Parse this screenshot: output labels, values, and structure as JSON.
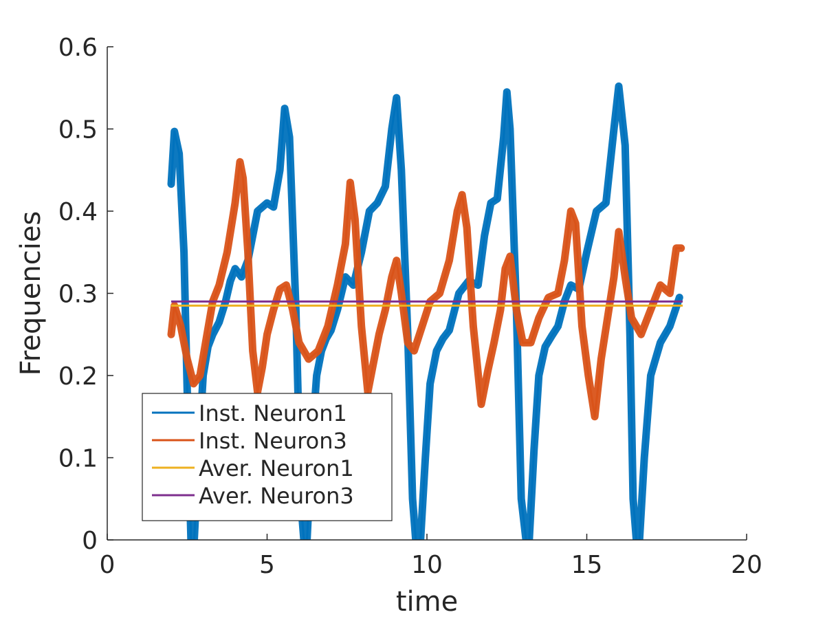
{
  "chart_data": {
    "type": "line",
    "title": "",
    "xlabel": "time",
    "ylabel": "Frequencies",
    "xlim": [
      0,
      20
    ],
    "ylim": [
      0,
      0.6
    ],
    "xticks": [
      0,
      5,
      10,
      15,
      20
    ],
    "yticks": [
      0,
      0.1,
      0.2,
      0.3,
      0.4,
      0.5,
      0.6
    ],
    "xtick_labels": [
      "0",
      "5",
      "10",
      "15",
      "20"
    ],
    "ytick_labels": [
      "0",
      "0.1",
      "0.2",
      "0.3",
      "0.4",
      "0.5",
      "0.6"
    ],
    "grid": false,
    "legend_position": "bottom-left",
    "series": [
      {
        "name": "Inst. Neuron1",
        "color": "#0072BD",
        "band": true,
        "x": [
          2.0,
          2.1,
          2.25,
          2.4,
          2.55,
          2.62,
          2.72,
          2.85,
          3.0,
          3.15,
          3.3,
          3.5,
          3.7,
          3.85,
          4.0,
          4.2,
          4.4,
          4.7,
          5.0,
          5.2,
          5.4,
          5.55,
          5.7,
          5.9,
          6.05,
          6.15,
          6.25,
          6.4,
          6.55,
          6.7,
          6.85,
          7.0,
          7.2,
          7.45,
          7.7,
          7.95,
          8.2,
          8.45,
          8.7,
          8.9,
          9.05,
          9.2,
          9.4,
          9.55,
          9.65,
          9.8,
          9.95,
          10.1,
          10.3,
          10.5,
          10.7,
          11.0,
          11.3,
          11.6,
          11.8,
          12.0,
          12.2,
          12.4,
          12.5,
          12.6,
          12.8,
          12.95,
          13.1,
          13.2,
          13.35,
          13.5,
          13.7,
          13.9,
          14.1,
          14.3,
          14.5,
          14.75,
          15.0,
          15.3,
          15.6,
          15.85,
          16.0,
          16.2,
          16.35,
          16.45,
          16.55,
          16.65,
          16.8,
          17.0,
          17.3,
          17.6,
          17.9
        ],
        "y": [
          0.433,
          0.497,
          0.47,
          0.35,
          0.1,
          0.0,
          0.0,
          0.1,
          0.2,
          0.235,
          0.25,
          0.265,
          0.29,
          0.315,
          0.33,
          0.32,
          0.34,
          0.4,
          0.41,
          0.405,
          0.45,
          0.525,
          0.49,
          0.28,
          0.05,
          0.0,
          0.0,
          0.12,
          0.2,
          0.23,
          0.245,
          0.255,
          0.28,
          0.32,
          0.31,
          0.35,
          0.4,
          0.41,
          0.43,
          0.5,
          0.538,
          0.45,
          0.25,
          0.05,
          0.0,
          0.0,
          0.1,
          0.19,
          0.23,
          0.245,
          0.255,
          0.3,
          0.315,
          0.31,
          0.37,
          0.41,
          0.415,
          0.49,
          0.545,
          0.5,
          0.28,
          0.05,
          0.0,
          0.0,
          0.11,
          0.2,
          0.235,
          0.248,
          0.26,
          0.29,
          0.31,
          0.305,
          0.35,
          0.4,
          0.41,
          0.5,
          0.552,
          0.48,
          0.25,
          0.05,
          0.0,
          0.0,
          0.1,
          0.2,
          0.24,
          0.26,
          0.295
        ]
      },
      {
        "name": "Inst. Neuron3",
        "color": "#D95319",
        "band": true,
        "x": [
          2.0,
          2.1,
          2.3,
          2.5,
          2.7,
          2.9,
          3.1,
          3.3,
          3.5,
          3.75,
          4.0,
          4.15,
          4.25,
          4.4,
          4.55,
          4.7,
          4.85,
          5.0,
          5.2,
          5.4,
          5.6,
          5.8,
          6.0,
          6.3,
          6.6,
          6.9,
          7.2,
          7.45,
          7.6,
          7.75,
          7.95,
          8.15,
          8.3,
          8.5,
          8.7,
          8.9,
          9.05,
          9.2,
          9.4,
          9.6,
          9.85,
          10.1,
          10.4,
          10.7,
          10.95,
          11.1,
          11.25,
          11.45,
          11.7,
          11.9,
          12.1,
          12.3,
          12.45,
          12.6,
          12.8,
          13.0,
          13.25,
          13.5,
          13.8,
          14.1,
          14.3,
          14.5,
          14.65,
          14.85,
          15.05,
          15.25,
          15.45,
          15.65,
          15.85,
          16.0,
          16.2,
          16.4,
          16.7,
          17.0,
          17.3,
          17.6,
          17.8,
          17.95
        ],
        "y": [
          0.25,
          0.285,
          0.26,
          0.22,
          0.19,
          0.2,
          0.245,
          0.29,
          0.31,
          0.35,
          0.41,
          0.46,
          0.44,
          0.35,
          0.23,
          0.18,
          0.21,
          0.25,
          0.28,
          0.305,
          0.31,
          0.28,
          0.24,
          0.22,
          0.23,
          0.26,
          0.31,
          0.36,
          0.435,
          0.39,
          0.26,
          0.18,
          0.21,
          0.25,
          0.28,
          0.32,
          0.34,
          0.3,
          0.24,
          0.23,
          0.26,
          0.29,
          0.3,
          0.34,
          0.4,
          0.42,
          0.38,
          0.26,
          0.165,
          0.205,
          0.24,
          0.28,
          0.33,
          0.345,
          0.28,
          0.24,
          0.24,
          0.27,
          0.295,
          0.3,
          0.34,
          0.4,
          0.385,
          0.26,
          0.2,
          0.15,
          0.22,
          0.27,
          0.32,
          0.375,
          0.32,
          0.27,
          0.25,
          0.28,
          0.31,
          0.3,
          0.355,
          0.355
        ]
      },
      {
        "name": "Aver. Neuron1",
        "color": "#EDB120",
        "band": false,
        "x": [
          2.0,
          18.0
        ],
        "y": [
          0.285,
          0.285
        ]
      },
      {
        "name": "Aver. Neuron3",
        "color": "#7E2F8E",
        "band": false,
        "x": [
          2.0,
          18.0
        ],
        "y": [
          0.29,
          0.29
        ]
      }
    ]
  }
}
